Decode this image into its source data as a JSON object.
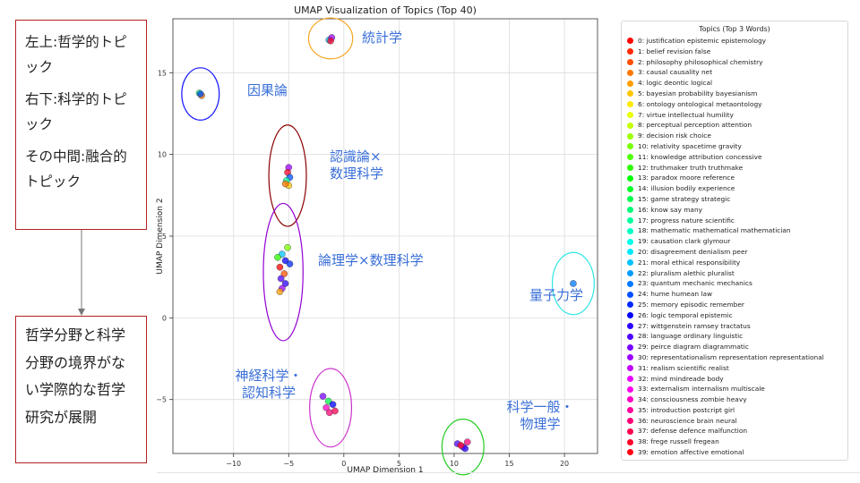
{
  "annotations": {
    "top_box": [
      "左上:哲学的トピック",
      "右下:科学的トピック",
      "その中間:融合的トピック"
    ],
    "bottom_box": "哲学分野と科学分野の境界がない学際的な哲学研究が展開"
  },
  "chart_data": {
    "type": "scatter",
    "title": "UMAP Visualization of Topics (Top 40)",
    "xlabel": "UMAP Dimension 1",
    "ylabel": "UMAP Dimension 2",
    "xlim": [
      -15.5,
      23
    ],
    "ylim": [
      -8.3,
      18.3
    ],
    "xticks": [
      -10,
      -5,
      0,
      5,
      10,
      15,
      20
    ],
    "yticks": [
      -5,
      0,
      5,
      10,
      15
    ],
    "grid": true,
    "legend": {
      "title": "Topics (Top 3 Words)",
      "placement": "right",
      "entries": [
        {
          "label": "0: justification epistemic epistemology",
          "color": "#ff0000"
        },
        {
          "label": "1: belief revision false",
          "color": "#ff2a00"
        },
        {
          "label": "2: philosophy philosophical chemistry",
          "color": "#ff5000"
        },
        {
          "label": "3: causal causality net",
          "color": "#ff7700"
        },
        {
          "label": "4: logic deontic logical",
          "color": "#ff9d00"
        },
        {
          "label": "5: bayesian probability bayesianism",
          "color": "#ffc400"
        },
        {
          "label": "6: ontology ontological metaontology",
          "color": "#ffea00"
        },
        {
          "label": "7: virtue intellectual humility",
          "color": "#eaff00"
        },
        {
          "label": "8: perceptual perception attention",
          "color": "#c4ff00"
        },
        {
          "label": "9: decision risk choice",
          "color": "#9dff00"
        },
        {
          "label": "10: relativity spacetime gravity",
          "color": "#77ff00"
        },
        {
          "label": "11: knowledge attribution concessive",
          "color": "#50ff00"
        },
        {
          "label": "12: truthmaker truth truthmake",
          "color": "#2aff00"
        },
        {
          "label": "13: paradox moore reference",
          "color": "#00ff00"
        },
        {
          "label": "14: illusion bodily experience",
          "color": "#00ff2a"
        },
        {
          "label": "15: game strategy strategic",
          "color": "#00ff50"
        },
        {
          "label": "16: know say many",
          "color": "#00ff77"
        },
        {
          "label": "17: progress nature scientific",
          "color": "#00ff9d"
        },
        {
          "label": "18: mathematic mathematical mathematician",
          "color": "#00ffc4"
        },
        {
          "label": "19: causation clark glymour",
          "color": "#00ffea"
        },
        {
          "label": "20: disagreement denialism peer",
          "color": "#00eaff"
        },
        {
          "label": "21: moral ethical responsibility",
          "color": "#00c4ff"
        },
        {
          "label": "22: pluralism alethic pluralist",
          "color": "#009dff"
        },
        {
          "label": "23: quantum mechanic mechanics",
          "color": "#0077ff"
        },
        {
          "label": "24: hume humean law",
          "color": "#0050ff"
        },
        {
          "label": "25: memory episodic remember",
          "color": "#002aff"
        },
        {
          "label": "26: logic temporal epistemic",
          "color": "#0000ff"
        },
        {
          "label": "27: wittgenstein ramsey tractatus",
          "color": "#2a00ff"
        },
        {
          "label": "28: language ordinary linguistic",
          "color": "#5000ff"
        },
        {
          "label": "29: peirce diagram diagrammatic",
          "color": "#7700ff"
        },
        {
          "label": "30: representationalism representation representational",
          "color": "#9d00ff"
        },
        {
          "label": "31: realism scientific realist",
          "color": "#c400ff"
        },
        {
          "label": "32: mind mindreade body",
          "color": "#ea00ff"
        },
        {
          "label": "33: externalism internalism multiscale",
          "color": "#ff00ea"
        },
        {
          "label": "34: consciousness zombie heavy",
          "color": "#ff00c4"
        },
        {
          "label": "35: introduction postcript girl",
          "color": "#ff009d"
        },
        {
          "label": "36: neuroscience brain neural",
          "color": "#ff0077"
        },
        {
          "label": "37: defense defence malfunction",
          "color": "#ff0050"
        },
        {
          "label": "38: frege russell fregean",
          "color": "#ff002a"
        },
        {
          "label": "39: emotion affective emotional",
          "color": "#ff0015"
        }
      ]
    },
    "clusters": [
      {
        "label": "統計学",
        "ring_color": "#f5a623",
        "center": [
          -1.2,
          17.1
        ],
        "rx": 2.0,
        "ry": 1.25,
        "points": [
          {
            "x": -1.35,
            "y": 17.0,
            "c": "#00c4ff"
          },
          {
            "x": -1.1,
            "y": 17.15,
            "c": "#9d00ff"
          },
          {
            "x": -1.2,
            "y": 16.95,
            "c": "#ff002a"
          }
        ]
      },
      {
        "label": "因果論",
        "ring_color": "#1a1aff",
        "center": [
          -13.0,
          13.7
        ],
        "rx": 1.7,
        "ry": 1.6,
        "points": [
          {
            "x": -13.1,
            "y": 13.75,
            "c": "#00ff77"
          },
          {
            "x": -12.9,
            "y": 13.6,
            "c": "#ff7700"
          },
          {
            "x": -13.0,
            "y": 13.7,
            "c": "#0050ff"
          }
        ]
      },
      {
        "label": "認識論×\n数理科学",
        "ring_color": "#8b0000",
        "center": [
          -5.1,
          8.7
        ],
        "rx": 1.7,
        "ry": 3.1,
        "points": [
          {
            "x": -5.0,
            "y": 9.2,
            "c": "#9d00ff"
          },
          {
            "x": -5.1,
            "y": 8.9,
            "c": "#ff002a"
          },
          {
            "x": -4.9,
            "y": 8.6,
            "c": "#0050ff"
          },
          {
            "x": -5.2,
            "y": 8.4,
            "c": "#00ff9d"
          },
          {
            "x": -5.0,
            "y": 8.1,
            "c": "#ffc400"
          },
          {
            "x": -5.3,
            "y": 8.2,
            "c": "#ff7700"
          }
        ]
      },
      {
        "label": "論理学×数理科学",
        "ring_color": "#9400d3",
        "center": [
          -5.5,
          2.8
        ],
        "rx": 1.8,
        "ry": 4.2,
        "points": [
          {
            "x": -5.1,
            "y": 4.3,
            "c": "#77ff00"
          },
          {
            "x": -5.6,
            "y": 3.9,
            "c": "#00c4ff"
          },
          {
            "x": -6.0,
            "y": 3.7,
            "c": "#2aff00"
          },
          {
            "x": -5.3,
            "y": 3.5,
            "c": "#0000ff"
          },
          {
            "x": -4.9,
            "y": 3.3,
            "c": "#002aff"
          },
          {
            "x": -5.8,
            "y": 3.1,
            "c": "#ff0000"
          },
          {
            "x": -5.4,
            "y": 2.7,
            "c": "#ff5000"
          },
          {
            "x": -5.7,
            "y": 2.4,
            "c": "#5000ff"
          },
          {
            "x": -5.3,
            "y": 2.1,
            "c": "#2a00ff"
          },
          {
            "x": -5.6,
            "y": 1.8,
            "c": "#9d00ff"
          },
          {
            "x": -5.8,
            "y": 1.6,
            "c": "#ff9d00"
          }
        ]
      },
      {
        "label": "量子力学",
        "ring_color": "#2ee6e6",
        "center": [
          20.8,
          2.1
        ],
        "rx": 1.9,
        "ry": 1.9,
        "points": [
          {
            "x": 20.8,
            "y": 2.1,
            "c": "#0077ff"
          }
        ]
      },
      {
        "label": "神経科学・\n認知科学",
        "ring_color": "#cc33cc",
        "center": [
          -1.2,
          -5.5
        ],
        "rx": 1.9,
        "ry": 2.4,
        "points": [
          {
            "x": -1.9,
            "y": -4.8,
            "c": "#7700ff"
          },
          {
            "x": -1.4,
            "y": -5.1,
            "c": "#00ff50"
          },
          {
            "x": -1.0,
            "y": -5.3,
            "c": "#0000ff"
          },
          {
            "x": -1.6,
            "y": -5.5,
            "c": "#ff00c4"
          },
          {
            "x": -0.8,
            "y": -5.7,
            "c": "#ff0050"
          },
          {
            "x": -1.3,
            "y": -5.8,
            "c": "#ff0077"
          }
        ]
      },
      {
        "label": "科学一般・\n物理学",
        "ring_color": "#22cc22",
        "center": [
          10.8,
          -7.9
        ],
        "rx": 1.9,
        "ry": 1.7,
        "points": [
          {
            "x": 10.3,
            "y": -7.7,
            "c": "#5000ff"
          },
          {
            "x": 10.8,
            "y": -7.9,
            "c": "#9d00ff"
          },
          {
            "x": 11.2,
            "y": -7.6,
            "c": "#ff0077"
          },
          {
            "x": 11.0,
            "y": -8.0,
            "c": "#2a00ff"
          },
          {
            "x": 10.6,
            "y": -7.8,
            "c": "#ff002a"
          }
        ]
      }
    ]
  }
}
